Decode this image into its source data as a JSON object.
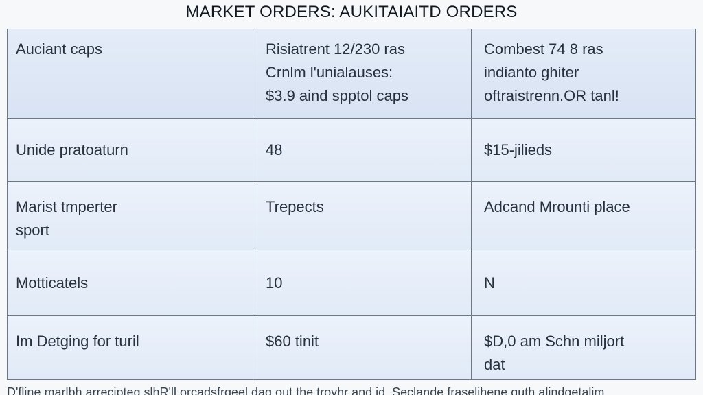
{
  "title": "MARKET ORDERS: AUKITAIAITD ORDERS",
  "table": {
    "header": [
      [
        "Auciant caps"
      ],
      [
        "Risiatrent 12/230 ras",
        "Crnlm l'unialauses:",
        "$3.9 aind spptol caps"
      ],
      [
        "Combest 74 8 ras",
        "indianto ghiter",
        "oftraistrenn.OR tanl!"
      ]
    ],
    "rows": [
      [
        [
          "Unide pratoaturn"
        ],
        [
          "48"
        ],
        [
          "$15-jilieds"
        ]
      ],
      [
        [
          "Marist tmperter",
          "sport"
        ],
        [
          "Trepects"
        ],
        [
          "Adcand Mrounti place"
        ]
      ],
      [
        [
          "Motticatels"
        ],
        [
          "10"
        ],
        [
          "N"
        ]
      ],
      [
        [
          "Im Detging for turil"
        ],
        [
          "$60 tinit"
        ],
        [
          "$D,0 am Schn miljort",
          "dat"
        ]
      ]
    ]
  },
  "footer": "D'fline marlbh arrecipteg slhR'll orcadsfrgeel dag out the troyhr and id. Seclande fraselihene guth alindgetalim"
}
